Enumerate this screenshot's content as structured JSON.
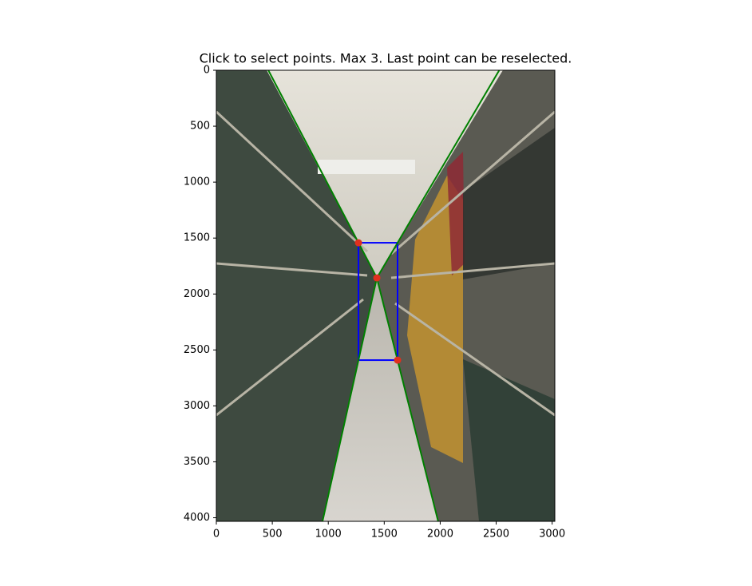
{
  "chart_data": {
    "type": "scatter",
    "title": "Click to select points. Max 3. Last point can be reselected.",
    "x": [
      1270,
      1434,
      1619
    ],
    "values": [
      1542,
      1856,
      2591
    ],
    "color": "#e0301e",
    "rect_color": "#0000ff",
    "line_color": "#008000",
    "xlim": [
      0,
      3024
    ],
    "ylim": [
      4032,
      0
    ],
    "xticks": [
      0,
      500,
      1000,
      1500,
      2000,
      2500,
      3000
    ],
    "yticks": [
      0,
      500,
      1000,
      1500,
      2000,
      2500,
      3000,
      3500,
      4000
    ]
  }
}
